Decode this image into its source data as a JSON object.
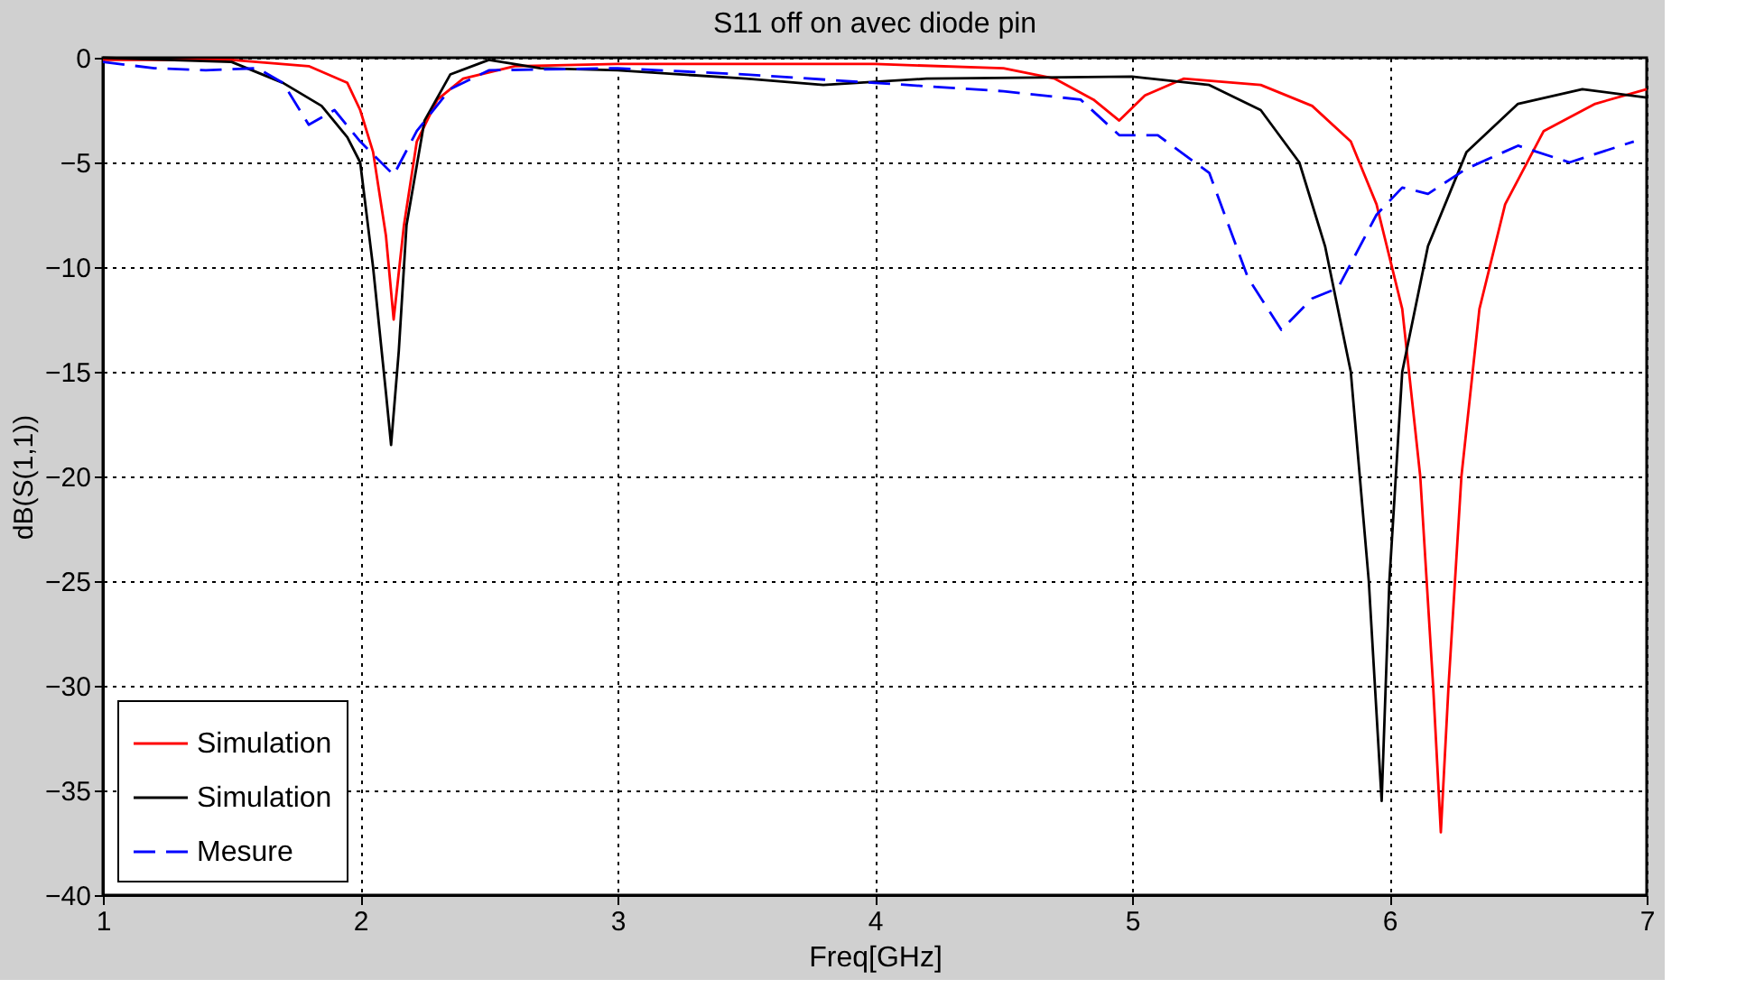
{
  "chart_data": {
    "type": "line",
    "title": "S11 off on avec diode pin",
    "xlabel": "Freq[GHz]",
    "ylabel": "dB(S(1,1))",
    "xlim": [
      1,
      7
    ],
    "xticks": [
      1,
      2,
      3,
      4,
      5,
      6,
      7
    ],
    "ylim": [
      -40,
      0
    ],
    "yticks": [
      -40,
      -35,
      -30,
      -25,
      -20,
      -15,
      -10,
      -5,
      0
    ],
    "grid": true,
    "legend": "bottom left",
    "series": [
      {
        "name": "Simulation",
        "color": "#ff0000",
        "line_style": "solid",
        "x": [
          1,
          1.5,
          1.8,
          1.95,
          2.0,
          2.05,
          2.1,
          2.13,
          2.17,
          2.22,
          2.3,
          2.4,
          2.6,
          3,
          4,
          4.5,
          4.7,
          4.85,
          4.95,
          5.05,
          5.2,
          5.5,
          5.7,
          5.85,
          5.95,
          6.05,
          6.12,
          6.17,
          6.2,
          6.23,
          6.28,
          6.35,
          6.45,
          6.6,
          6.8,
          7
        ],
        "values": [
          -0.1,
          -0.1,
          -0.4,
          -1.2,
          -2.5,
          -4.5,
          -8.5,
          -12.5,
          -8,
          -4,
          -2,
          -1,
          -0.4,
          -0.3,
          -0.3,
          -0.5,
          -1,
          -2,
          -3,
          -1.8,
          -1,
          -1.3,
          -2.3,
          -4,
          -7,
          -12,
          -20,
          -30,
          -37,
          -30,
          -20,
          -12,
          -7,
          -3.5,
          -2.2,
          -1.5
        ]
      },
      {
        "name": "Simulation",
        "color": "#000000",
        "line_style": "solid",
        "x": [
          1,
          1.5,
          1.7,
          1.85,
          1.95,
          2.0,
          2.05,
          2.1,
          2.12,
          2.15,
          2.18,
          2.25,
          2.35,
          2.5,
          2.7,
          3,
          3.5,
          3.8,
          4.2,
          5,
          5.3,
          5.5,
          5.65,
          5.75,
          5.85,
          5.92,
          5.97,
          6.0,
          6.05,
          6.15,
          6.3,
          6.5,
          6.75,
          7
        ],
        "values": [
          0,
          -0.2,
          -1.2,
          -2.3,
          -3.8,
          -5,
          -10,
          -16,
          -18.5,
          -14,
          -8,
          -3,
          -0.8,
          -0.1,
          -0.5,
          -0.6,
          -1,
          -1.3,
          -1,
          -0.9,
          -1.3,
          -2.5,
          -5,
          -9,
          -15,
          -25,
          -35.5,
          -25,
          -15,
          -9,
          -4.5,
          -2.2,
          -1.5,
          -1.9
        ]
      },
      {
        "name": "Mesure",
        "color": "#0000ff",
        "line_style": "dashed",
        "x": [
          1,
          1.2,
          1.4,
          1.6,
          1.7,
          1.8,
          1.9,
          2.0,
          2.13,
          2.22,
          2.35,
          2.5,
          3,
          3.5,
          4,
          4.5,
          4.8,
          4.95,
          5.1,
          5.3,
          5.45,
          5.58,
          5.7,
          5.8,
          5.95,
          6.05,
          6.15,
          6.3,
          6.5,
          6.7,
          6.95
        ],
        "values": [
          -0.2,
          -0.5,
          -0.6,
          -0.5,
          -1.2,
          -3.2,
          -2.5,
          -4,
          -5.6,
          -3.5,
          -1.5,
          -0.6,
          -0.5,
          -0.8,
          -1.2,
          -1.6,
          -2,
          -3.7,
          -3.7,
          -5.5,
          -10.5,
          -13,
          -11.5,
          -11,
          -7.5,
          -6.2,
          -6.5,
          -5.3,
          -4.2,
          -5,
          -4
        ]
      }
    ]
  }
}
